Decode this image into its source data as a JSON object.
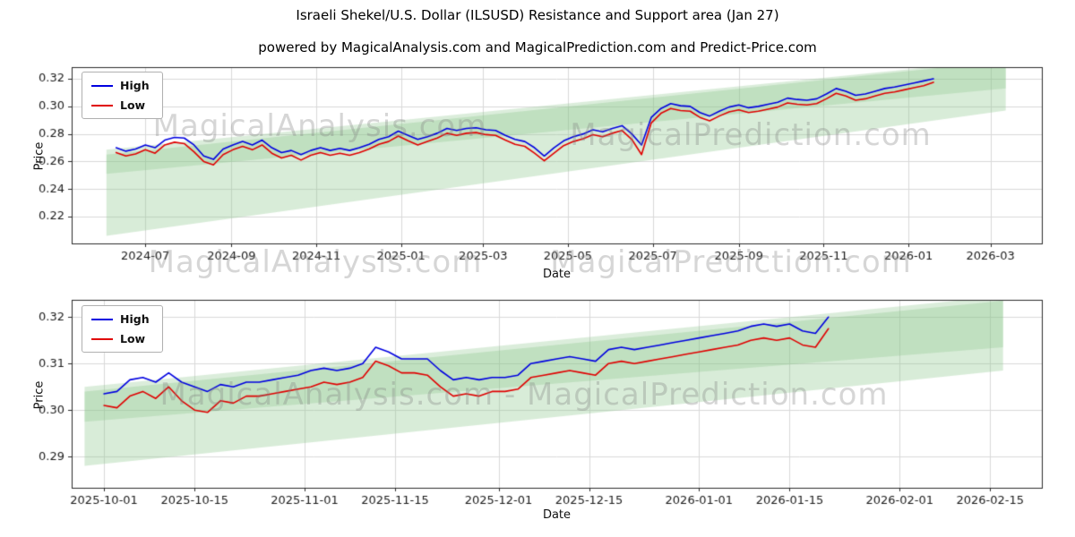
{
  "title": "Israeli Shekel/U.S. Dollar (ILSUSD) Resistance and Support area (Jan 27)",
  "subtitle": "powered by MagicalAnalysis.com and MagicalPrediction.com and Predict-Price.com",
  "watermarks": {
    "analysis": "MagicalAnalysis.com",
    "prediction": "MagicalPrediction.com",
    "combined": "MagicalAnalysis.com  -  MagicalPrediction.com"
  },
  "chart_data": [
    {
      "type": "line",
      "name": "full-history",
      "xlabel": "Date",
      "ylabel": "Price",
      "grid": true,
      "legend": {
        "position": "upper-left",
        "entries": [
          {
            "label": "High",
            "color": "#0000e0"
          },
          {
            "label": "Low",
            "color": "#e00000"
          }
        ]
      },
      "xlim": [
        "2024-05-09",
        "2026-04-07"
      ],
      "ylim": [
        0.2005,
        0.3285
      ],
      "yticks": [
        0.22,
        0.24,
        0.26,
        0.28,
        0.3,
        0.32
      ],
      "xticks": [
        {
          "date": "2024-07-01",
          "label": "2024-07"
        },
        {
          "date": "2024-09-01",
          "label": "2024-09"
        },
        {
          "date": "2024-11-01",
          "label": "2024-11"
        },
        {
          "date": "2025-01-01",
          "label": "2025-01"
        },
        {
          "date": "2025-03-01",
          "label": "2025-03"
        },
        {
          "date": "2025-05-01",
          "label": "2025-05"
        },
        {
          "date": "2025-07-01",
          "label": "2025-07"
        },
        {
          "date": "2025-09-01",
          "label": "2025-09"
        },
        {
          "date": "2025-11-01",
          "label": "2025-11"
        },
        {
          "date": "2026-01-01",
          "label": "2026-01"
        },
        {
          "date": "2026-03-01",
          "label": "2026-03"
        }
      ],
      "bands": [
        {
          "x": [
            "2024-06-03",
            "2026-03-12"
          ],
          "top": [
            0.265,
            0.333
          ],
          "bottom": [
            0.206,
            0.297
          ],
          "color": "rgba(135,195,135,0.32)"
        },
        {
          "x": [
            "2024-06-03",
            "2026-03-12"
          ],
          "top": [
            0.2685,
            0.334
          ],
          "bottom": [
            0.251,
            0.313
          ],
          "color": "rgba(135,195,135,0.30)"
        }
      ],
      "x": [
        "2024-06-10",
        "2024-06-17",
        "2024-06-24",
        "2024-07-01",
        "2024-07-08",
        "2024-07-15",
        "2024-07-22",
        "2024-07-29",
        "2024-08-05",
        "2024-08-12",
        "2024-08-19",
        "2024-08-26",
        "2024-09-02",
        "2024-09-09",
        "2024-09-16",
        "2024-09-23",
        "2024-09-30",
        "2024-10-07",
        "2024-10-14",
        "2024-10-21",
        "2024-10-28",
        "2024-11-04",
        "2024-11-11",
        "2024-11-18",
        "2024-11-25",
        "2024-12-02",
        "2024-12-09",
        "2024-12-16",
        "2024-12-23",
        "2024-12-30",
        "2025-01-06",
        "2025-01-13",
        "2025-01-20",
        "2025-01-27",
        "2025-02-03",
        "2025-02-10",
        "2025-02-17",
        "2025-02-24",
        "2025-03-03",
        "2025-03-10",
        "2025-03-17",
        "2025-03-24",
        "2025-03-31",
        "2025-04-07",
        "2025-04-14",
        "2025-04-21",
        "2025-04-28",
        "2025-05-05",
        "2025-05-12",
        "2025-05-19",
        "2025-05-26",
        "2025-06-02",
        "2025-06-09",
        "2025-06-16",
        "2025-06-23",
        "2025-06-30",
        "2025-07-07",
        "2025-07-14",
        "2025-07-21",
        "2025-07-28",
        "2025-08-04",
        "2025-08-11",
        "2025-08-18",
        "2025-08-25",
        "2025-09-01",
        "2025-09-08",
        "2025-09-15",
        "2025-09-22",
        "2025-09-29",
        "2025-10-06",
        "2025-10-13",
        "2025-10-20",
        "2025-10-27",
        "2025-11-03",
        "2025-11-10",
        "2025-11-17",
        "2025-11-24",
        "2025-12-01",
        "2025-12-08",
        "2025-12-15",
        "2025-12-22",
        "2025-12-29",
        "2026-01-05",
        "2026-01-12",
        "2026-01-19"
      ],
      "series": [
        {
          "name": "High",
          "color": "#0000e0",
          "values": [
            0.27,
            0.2675,
            0.269,
            0.272,
            0.27,
            0.2755,
            0.2775,
            0.277,
            0.272,
            0.264,
            0.2615,
            0.269,
            0.272,
            0.2745,
            0.272,
            0.2755,
            0.27,
            0.2665,
            0.268,
            0.265,
            0.268,
            0.27,
            0.268,
            0.2695,
            0.268,
            0.27,
            0.2725,
            0.276,
            0.278,
            0.282,
            0.279,
            0.276,
            0.278,
            0.2805,
            0.284,
            0.2825,
            0.284,
            0.2845,
            0.283,
            0.2825,
            0.279,
            0.276,
            0.2745,
            0.27,
            0.264,
            0.27,
            0.275,
            0.278,
            0.28,
            0.283,
            0.2815,
            0.284,
            0.286,
            0.28,
            0.272,
            0.292,
            0.2985,
            0.302,
            0.3005,
            0.3,
            0.2955,
            0.293,
            0.2965,
            0.2995,
            0.301,
            0.299,
            0.3,
            0.3015,
            0.303,
            0.306,
            0.305,
            0.3045,
            0.3055,
            0.309,
            0.313,
            0.311,
            0.308,
            0.309,
            0.311,
            0.313,
            0.314,
            0.3155,
            0.317,
            0.3185,
            0.32
          ]
        },
        {
          "name": "Low",
          "color": "#e00000",
          "values": [
            0.2665,
            0.264,
            0.2655,
            0.2685,
            0.266,
            0.272,
            0.274,
            0.273,
            0.267,
            0.26,
            0.2575,
            0.265,
            0.2685,
            0.271,
            0.2685,
            0.272,
            0.266,
            0.2625,
            0.2645,
            0.261,
            0.2645,
            0.2665,
            0.2645,
            0.266,
            0.2645,
            0.2665,
            0.269,
            0.2725,
            0.2745,
            0.2785,
            0.275,
            0.272,
            0.2745,
            0.277,
            0.2805,
            0.279,
            0.2805,
            0.281,
            0.2795,
            0.279,
            0.2755,
            0.2725,
            0.271,
            0.266,
            0.2605,
            0.266,
            0.2715,
            0.2745,
            0.2765,
            0.2795,
            0.278,
            0.2805,
            0.2825,
            0.276,
            0.265,
            0.288,
            0.295,
            0.2985,
            0.297,
            0.2965,
            0.292,
            0.2895,
            0.293,
            0.296,
            0.2975,
            0.2955,
            0.2965,
            0.298,
            0.2995,
            0.3025,
            0.3015,
            0.301,
            0.302,
            0.3055,
            0.3095,
            0.3075,
            0.3045,
            0.3055,
            0.3075,
            0.3095,
            0.3105,
            0.312,
            0.3135,
            0.315,
            0.3175
          ]
        }
      ]
    },
    {
      "type": "line",
      "name": "recent-detail",
      "xlabel": "Date",
      "ylabel": "Price",
      "grid": true,
      "legend": {
        "position": "upper-left",
        "entries": [
          {
            "label": "High",
            "color": "#0000e0"
          },
          {
            "label": "Low",
            "color": "#e00000"
          }
        ]
      },
      "xlim": [
        "2025-09-26",
        "2026-02-23"
      ],
      "ylim": [
        0.2833,
        0.3237
      ],
      "yticks": [
        0.29,
        0.3,
        0.31,
        0.32
      ],
      "xticks": [
        {
          "date": "2025-10-01",
          "label": "2025-10-01"
        },
        {
          "date": "2025-10-15",
          "label": "2025-10-15"
        },
        {
          "date": "2025-11-01",
          "label": "2025-11-01"
        },
        {
          "date": "2025-11-15",
          "label": "2025-11-15"
        },
        {
          "date": "2025-12-01",
          "label": "2025-12-01"
        },
        {
          "date": "2025-12-15",
          "label": "2025-12-15"
        },
        {
          "date": "2026-01-01",
          "label": "2026-01-01"
        },
        {
          "date": "2026-01-15",
          "label": "2026-01-15"
        },
        {
          "date": "2026-02-01",
          "label": "2026-02-01"
        },
        {
          "date": "2026-02-15",
          "label": "2026-02-15"
        }
      ],
      "bands": [
        {
          "x": [
            "2025-09-28",
            "2026-02-17"
          ],
          "top": [
            0.304,
            0.3235
          ],
          "bottom": [
            0.288,
            0.3085
          ],
          "color": "rgba(135,195,135,0.32)"
        },
        {
          "x": [
            "2025-09-28",
            "2026-02-17"
          ],
          "top": [
            0.305,
            0.3245
          ],
          "bottom": [
            0.2975,
            0.3135
          ],
          "color": "rgba(135,195,135,0.30)"
        }
      ],
      "x": [
        "2025-10-01",
        "2025-10-03",
        "2025-10-05",
        "2025-10-07",
        "2025-10-09",
        "2025-10-11",
        "2025-10-13",
        "2025-10-15",
        "2025-10-17",
        "2025-10-19",
        "2025-10-21",
        "2025-10-23",
        "2025-10-25",
        "2025-10-27",
        "2025-10-29",
        "2025-10-31",
        "2025-11-02",
        "2025-11-04",
        "2025-11-06",
        "2025-11-08",
        "2025-11-10",
        "2025-11-12",
        "2025-11-14",
        "2025-11-16",
        "2025-11-18",
        "2025-11-20",
        "2025-11-22",
        "2025-11-24",
        "2025-11-26",
        "2025-11-28",
        "2025-11-30",
        "2025-12-02",
        "2025-12-04",
        "2025-12-06",
        "2025-12-08",
        "2025-12-10",
        "2025-12-12",
        "2025-12-14",
        "2025-12-16",
        "2025-12-18",
        "2025-12-20",
        "2025-12-22",
        "2025-12-24",
        "2025-12-26",
        "2025-12-28",
        "2025-12-30",
        "2026-01-01",
        "2026-01-03",
        "2026-01-05",
        "2026-01-07",
        "2026-01-09",
        "2026-01-11",
        "2026-01-13",
        "2026-01-15",
        "2026-01-17",
        "2026-01-19",
        "2026-01-21"
      ],
      "series": [
        {
          "name": "High",
          "color": "#0000e0",
          "values": [
            0.3035,
            0.304,
            0.3065,
            0.307,
            0.306,
            0.308,
            0.306,
            0.305,
            0.304,
            0.3055,
            0.305,
            0.306,
            0.306,
            0.3065,
            0.307,
            0.3075,
            0.3085,
            0.309,
            0.3085,
            0.309,
            0.31,
            0.3135,
            0.3125,
            0.311,
            0.311,
            0.311,
            0.3085,
            0.3065,
            0.307,
            0.3065,
            0.307,
            0.307,
            0.3075,
            0.31,
            0.3105,
            0.311,
            0.3115,
            0.311,
            0.3105,
            0.313,
            0.3135,
            0.313,
            0.3135,
            0.314,
            0.3145,
            0.315,
            0.3155,
            0.316,
            0.3165,
            0.317,
            0.318,
            0.3185,
            0.318,
            0.3185,
            0.317,
            0.3165,
            0.32
          ]
        },
        {
          "name": "Low",
          "color": "#e00000",
          "values": [
            0.301,
            0.3005,
            0.303,
            0.304,
            0.3025,
            0.305,
            0.302,
            0.3,
            0.2995,
            0.302,
            0.3015,
            0.303,
            0.303,
            0.3035,
            0.304,
            0.3045,
            0.305,
            0.306,
            0.3055,
            0.306,
            0.307,
            0.3105,
            0.3095,
            0.308,
            0.308,
            0.3075,
            0.305,
            0.303,
            0.3035,
            0.303,
            0.304,
            0.304,
            0.3045,
            0.307,
            0.3075,
            0.308,
            0.3085,
            0.308,
            0.3075,
            0.31,
            0.3105,
            0.31,
            0.3105,
            0.311,
            0.3115,
            0.312,
            0.3125,
            0.313,
            0.3135,
            0.314,
            0.315,
            0.3155,
            0.315,
            0.3155,
            0.314,
            0.3135,
            0.3175
          ]
        }
      ]
    }
  ]
}
